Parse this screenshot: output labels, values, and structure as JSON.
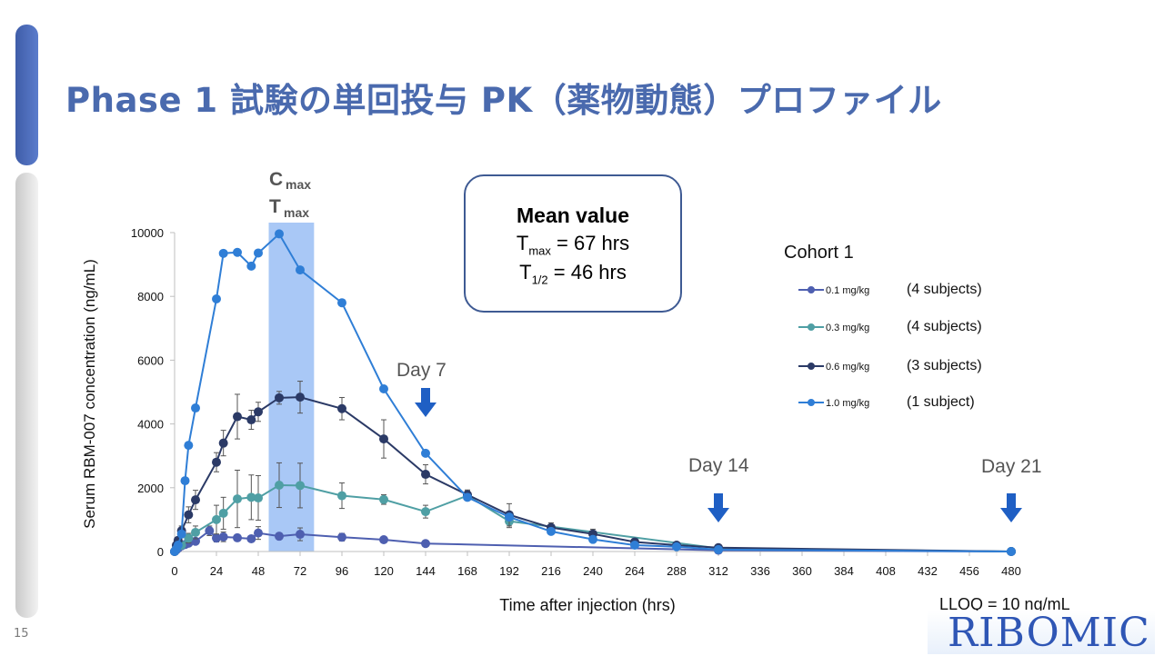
{
  "slide": {
    "title": "Phase 1 試験の単回投与 PK（薬物動態）プロファイル",
    "page_number": "15",
    "logo": "RIBOMIC",
    "lloq": "LLOQ = 10 ng/mL"
  },
  "mean_box": {
    "title": "Mean value",
    "tmax_label": "T",
    "tmax_sub": "max",
    "tmax_value": "= 67 hrs",
    "thalf_label": "T",
    "thalf_sub": "1/2",
    "thalf_value": "= 46 hrs"
  },
  "annotations": {
    "cmax_main": "C",
    "cmax_sub": "max",
    "tmax_main": "T",
    "tmax_sub": "max",
    "day7": "Day 7",
    "day14": "Day 14",
    "day21": "Day 21"
  },
  "colors": {
    "title": "#4a6aae",
    "dose_0_1": "#4e5fb0",
    "dose_0_3": "#4f9fa4",
    "dose_0_6": "#2b3a66",
    "dose_1_0": "#2f7ed6",
    "highlight": "#a9c8f6",
    "arrow": "#1f5fc4"
  },
  "chart_data": {
    "type": "line",
    "xlabel": "Time after injection (hrs)",
    "ylabel": "Serum RBM-007 concentration (ng/mL)",
    "xlim": [
      0,
      480
    ],
    "ylim": [
      0,
      10000
    ],
    "xticks": [
      0,
      24,
      48,
      72,
      96,
      120,
      144,
      168,
      192,
      216,
      240,
      264,
      288,
      312,
      336,
      360,
      384,
      408,
      432,
      456,
      480
    ],
    "yticks": [
      0,
      2000,
      4000,
      6000,
      8000,
      10000
    ],
    "highlight_band_x": [
      54,
      80
    ],
    "arrows_x": [
      144,
      312,
      480
    ],
    "legend_title": "Cohort 1",
    "legend_position": "right",
    "series": [
      {
        "name": "0.1 mg/kg",
        "subjects": "(4 subjects)",
        "color": "#4e5fb0",
        "x": [
          0,
          1,
          2,
          4,
          6,
          8,
          12,
          20,
          24,
          28,
          36,
          44,
          48,
          60,
          72,
          96,
          120,
          144,
          312,
          480
        ],
        "y": [
          0,
          50,
          100,
          180,
          220,
          260,
          320,
          650,
          420,
          460,
          430,
          400,
          580,
          480,
          540,
          450,
          370,
          250,
          40,
          0
        ],
        "err": [
          0,
          20,
          40,
          60,
          60,
          60,
          80,
          150,
          120,
          150,
          100,
          90,
          200,
          100,
          200,
          120,
          80,
          60,
          20,
          0
        ]
      },
      {
        "name": "0.3 mg/kg",
        "subjects": "(4 subjects)",
        "color": "#4f9fa4",
        "x": [
          0,
          1,
          2,
          4,
          8,
          12,
          24,
          28,
          36,
          44,
          48,
          60,
          72,
          96,
          120,
          144,
          168,
          192,
          312,
          480
        ],
        "y": [
          0,
          100,
          150,
          200,
          420,
          600,
          1000,
          1200,
          1650,
          1700,
          1680,
          2080,
          2070,
          1750,
          1630,
          1250,
          1750,
          950,
          100,
          0
        ],
        "err": [
          0,
          30,
          50,
          80,
          150,
          200,
          450,
          500,
          900,
          700,
          700,
          700,
          700,
          400,
          150,
          200,
          150,
          200,
          40,
          0
        ]
      },
      {
        "name": "0.6 mg/kg",
        "subjects": "(3 subjects)",
        "color": "#2b3a66",
        "x": [
          0,
          1,
          2,
          4,
          8,
          12,
          24,
          28,
          36,
          44,
          48,
          60,
          72,
          96,
          120,
          144,
          168,
          192,
          216,
          240,
          264,
          288,
          312,
          480
        ],
        "y": [
          0,
          200,
          350,
          650,
          1150,
          1620,
          2800,
          3400,
          4230,
          4130,
          4380,
          4820,
          4840,
          4480,
          3530,
          2420,
          1780,
          1150,
          750,
          550,
          300,
          200,
          120,
          0
        ],
        "err": [
          0,
          60,
          100,
          150,
          250,
          300,
          300,
          400,
          700,
          300,
          300,
          200,
          500,
          350,
          600,
          300,
          150,
          350,
          150,
          150,
          80,
          60,
          40,
          0
        ]
      },
      {
        "name": "1.0 mg/kg",
        "subjects": "(1 subject)",
        "color": "#2f7ed6",
        "x": [
          0,
          1,
          2,
          4,
          6,
          8,
          12,
          24,
          28,
          36,
          44,
          48,
          60,
          72,
          96,
          120,
          144,
          168,
          192,
          216,
          240,
          264,
          288,
          312,
          480
        ],
        "y": [
          0,
          80,
          200,
          550,
          2220,
          3330,
          4500,
          7920,
          9350,
          9380,
          8950,
          9360,
          9960,
          8830,
          7800,
          5100,
          3080,
          1700,
          1080,
          630,
          380,
          200,
          150,
          60,
          0
        ]
      }
    ]
  }
}
